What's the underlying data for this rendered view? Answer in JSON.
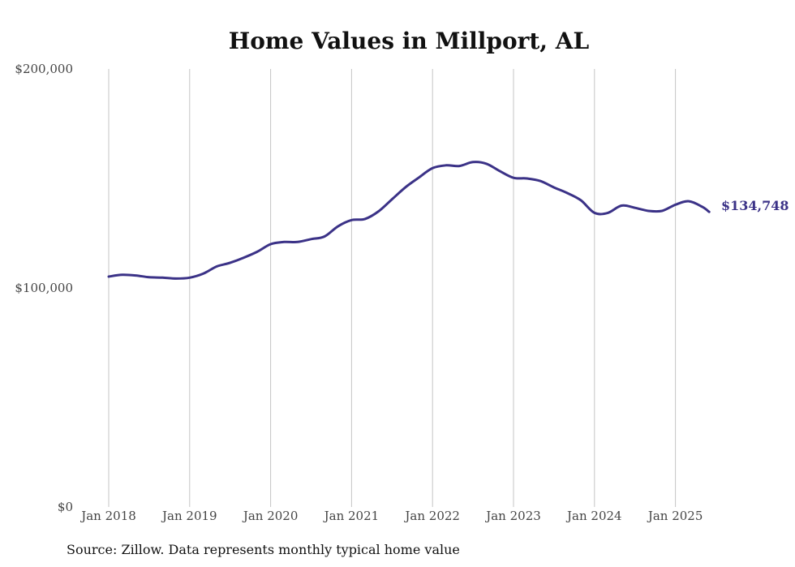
{
  "chart_data": {
    "type": "line",
    "title": "Home Values in Millport, AL",
    "xlabel": "",
    "ylabel": "",
    "ylim": [
      0,
      200000
    ],
    "y_ticks": [
      {
        "value": 0,
        "label": "$0"
      },
      {
        "value": 100000,
        "label": "$100,000"
      },
      {
        "value": 200000,
        "label": "$200,000"
      }
    ],
    "x_ticks": [
      {
        "value": "2018-01",
        "label": "Jan 2018"
      },
      {
        "value": "2019-01",
        "label": "Jan 2019"
      },
      {
        "value": "2020-01",
        "label": "Jan 2020"
      },
      {
        "value": "2021-01",
        "label": "Jan 2021"
      },
      {
        "value": "2022-01",
        "label": "Jan 2022"
      },
      {
        "value": "2023-01",
        "label": "Jan 2023"
      },
      {
        "value": "2024-01",
        "label": "Jan 2024"
      },
      {
        "value": "2025-01",
        "label": "Jan 2025"
      }
    ],
    "grid": {
      "vertical": true,
      "horizontal": false
    },
    "series": [
      {
        "color": "#3b3287",
        "points": [
          [
            "2018-01",
            105200
          ],
          [
            "2018-03",
            106000
          ],
          [
            "2018-05",
            105700
          ],
          [
            "2018-07",
            104900
          ],
          [
            "2018-09",
            104700
          ],
          [
            "2018-11",
            104300
          ],
          [
            "2019-01",
            104700
          ],
          [
            "2019-03",
            106500
          ],
          [
            "2019-05",
            109800
          ],
          [
            "2019-07",
            111500
          ],
          [
            "2019-09",
            113800
          ],
          [
            "2019-11",
            116500
          ],
          [
            "2020-01",
            120000
          ],
          [
            "2020-03",
            121000
          ],
          [
            "2020-05",
            121000
          ],
          [
            "2020-07",
            122300
          ],
          [
            "2020-09",
            123500
          ],
          [
            "2020-11",
            128200
          ],
          [
            "2021-01",
            131000
          ],
          [
            "2021-03",
            131500
          ],
          [
            "2021-05",
            135000
          ],
          [
            "2021-07",
            140500
          ],
          [
            "2021-09",
            146000
          ],
          [
            "2021-11",
            150500
          ],
          [
            "2022-01",
            154700
          ],
          [
            "2022-03",
            156000
          ],
          [
            "2022-05",
            155700
          ],
          [
            "2022-07",
            157500
          ],
          [
            "2022-09",
            156700
          ],
          [
            "2022-11",
            153300
          ],
          [
            "2023-01",
            150300
          ],
          [
            "2023-03",
            150000
          ],
          [
            "2023-05",
            148800
          ],
          [
            "2023-07",
            145900
          ],
          [
            "2023-09",
            143300
          ],
          [
            "2023-11",
            140000
          ],
          [
            "2024-01",
            134300
          ],
          [
            "2024-03",
            134300
          ],
          [
            "2024-05",
            137600
          ],
          [
            "2024-07",
            136600
          ],
          [
            "2024-09",
            135200
          ],
          [
            "2024-11",
            135200
          ],
          [
            "2025-01",
            138000
          ],
          [
            "2025-03",
            139600
          ],
          [
            "2025-05",
            137000
          ],
          [
            "2025-06",
            134748
          ]
        ]
      }
    ],
    "end_label": "$134,748",
    "source": "Source: Zillow. Data represents monthly typical home value"
  }
}
